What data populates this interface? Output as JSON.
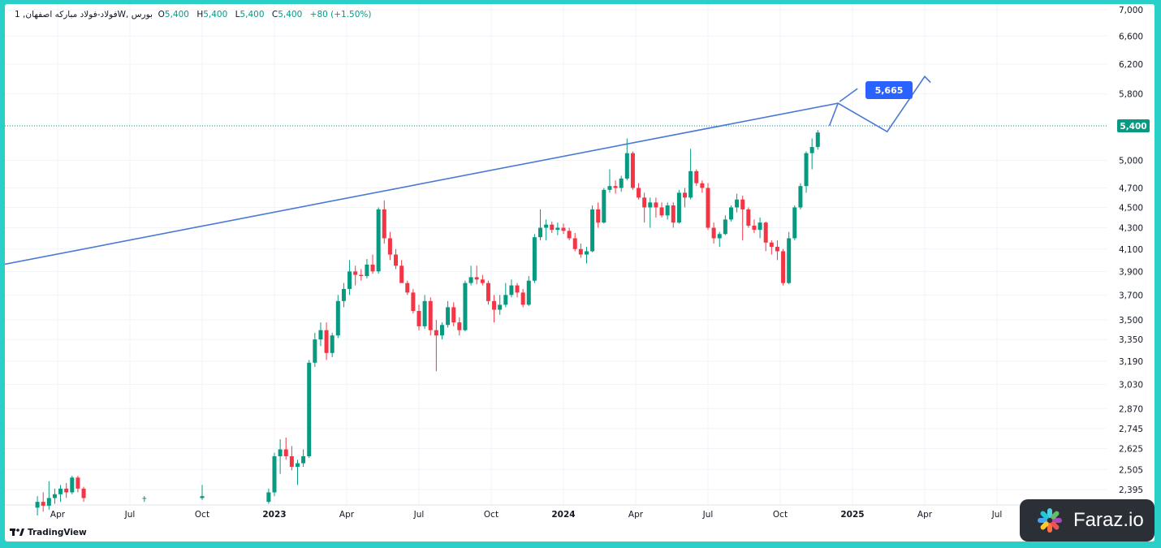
{
  "legend": {
    "symbol": "فولاد-فولاد مبارکه اصفهان, 1W, بورس",
    "open_label": "O",
    "open": "5,400",
    "high_label": "H",
    "high": "5,400",
    "low_label": "L",
    "low": "5,400",
    "close_label": "C",
    "close": "5,400",
    "change": "+80 (+1.50%)"
  },
  "brand": "TradingView",
  "watermark": "Faraz.io",
  "colors": {
    "up": "#089981",
    "down": "#f23645",
    "trend": "#4a78d6",
    "label_bg": "#2962ff",
    "price_tag": "#089981"
  },
  "chart_data": {
    "type": "candlestick",
    "title": "فولاد-فولاد مبارکه اصفهان, 1W, بورس",
    "y_scale": "log",
    "y_ticks": [
      "7,000",
      "6,600",
      "6,200",
      "5,800",
      "5,400",
      "5,000",
      "4,700",
      "4,500",
      "4,300",
      "4,100",
      "3,900",
      "3,700",
      "3,500",
      "3,350",
      "3,190",
      "3,030",
      "2,870",
      "2,745",
      "2,625",
      "2,505",
      "2,395"
    ],
    "y_tick_values": [
      7000,
      6600,
      6200,
      5800,
      5400,
      5000,
      4700,
      4500,
      4300,
      4100,
      3900,
      3700,
      3500,
      3350,
      3190,
      3030,
      2870,
      2745,
      2625,
      2505,
      2395
    ],
    "x_ticks": [
      "Apr",
      "Jul",
      "Oct",
      "2023",
      "Apr",
      "Jul",
      "Oct",
      "2024",
      "Apr",
      "Jul",
      "Oct",
      "2025",
      "Apr",
      "Jul"
    ],
    "x_tick_dates": [
      "2022-04",
      "2022-07",
      "2022-10",
      "2023-01",
      "2023-04",
      "2023-07",
      "2023-10",
      "2024-01",
      "2024-04",
      "2024-07",
      "2024-10",
      "2025-01",
      "2025-04",
      "2025-07"
    ],
    "last_price": 5400,
    "last_price_label": "5,400",
    "target_label": "5,665",
    "target_value": 5665,
    "trendline": [
      [
        2022.0,
        3930
      ],
      [
        2024.95,
        5680
      ]
    ],
    "projection": [
      [
        2024.92,
        5400
      ],
      [
        2024.95,
        5680
      ],
      [
        2025.12,
        5330
      ],
      [
        2025.25,
        6030
      ],
      [
        2025.27,
        5950
      ]
    ],
    "candles": [
      [
        2022.18,
        2300,
        2360,
        2260,
        2330
      ],
      [
        2022.2,
        2330,
        2380,
        2280,
        2310
      ],
      [
        2022.22,
        2310,
        2440,
        2290,
        2350
      ],
      [
        2022.24,
        2350,
        2400,
        2320,
        2370
      ],
      [
        2022.26,
        2370,
        2420,
        2330,
        2400
      ],
      [
        2022.28,
        2400,
        2430,
        2350,
        2380
      ],
      [
        2022.3,
        2380,
        2470,
        2370,
        2460
      ],
      [
        2022.32,
        2460,
        2470,
        2380,
        2400
      ],
      [
        2022.34,
        2400,
        2410,
        2330,
        2350
      ],
      [
        2022.55,
        2350,
        2360,
        2330,
        2350
      ],
      [
        2022.75,
        2350,
        2420,
        2340,
        2360
      ],
      [
        2022.98,
        2330,
        2400,
        2320,
        2380
      ],
      [
        2023.0,
        2380,
        2600,
        2360,
        2580
      ],
      [
        2023.02,
        2580,
        2680,
        2480,
        2620
      ],
      [
        2023.04,
        2620,
        2690,
        2560,
        2580
      ],
      [
        2023.06,
        2580,
        2640,
        2500,
        2520
      ],
      [
        2023.08,
        2520,
        2560,
        2420,
        2540
      ],
      [
        2023.1,
        2540,
        2620,
        2520,
        2580
      ],
      [
        2023.12,
        2580,
        3200,
        2570,
        3180
      ],
      [
        2023.14,
        3180,
        3400,
        3150,
        3350
      ],
      [
        2023.16,
        3350,
        3480,
        3300,
        3420
      ],
      [
        2023.18,
        3420,
        3480,
        3200,
        3250
      ],
      [
        2023.2,
        3250,
        3400,
        3220,
        3380
      ],
      [
        2023.22,
        3380,
        3700,
        3360,
        3650
      ],
      [
        2023.24,
        3650,
        3800,
        3600,
        3750
      ],
      [
        2023.26,
        3750,
        4000,
        3700,
        3900
      ],
      [
        2023.28,
        3900,
        3950,
        3780,
        3870
      ],
      [
        2023.3,
        3870,
        3920,
        3820,
        3860
      ],
      [
        2023.32,
        3860,
        4010,
        3840,
        3960
      ],
      [
        2023.34,
        3960,
        4050,
        3880,
        3900
      ],
      [
        2023.36,
        3900,
        4500,
        3880,
        4480
      ],
      [
        2023.38,
        4480,
        4570,
        4150,
        4200
      ],
      [
        2023.4,
        4200,
        4260,
        4000,
        4050
      ],
      [
        2023.42,
        4050,
        4100,
        3920,
        3950
      ],
      [
        2023.44,
        3950,
        4000,
        3820,
        3800
      ],
      [
        2023.46,
        3800,
        3820,
        3700,
        3720
      ],
      [
        2023.48,
        3720,
        3750,
        3550,
        3570
      ],
      [
        2023.5,
        3570,
        3620,
        3420,
        3450
      ],
      [
        2023.52,
        3450,
        3700,
        3430,
        3650
      ],
      [
        2023.54,
        3650,
        3680,
        3380,
        3420
      ],
      [
        2023.56,
        3420,
        3500,
        3120,
        3380
      ],
      [
        2023.58,
        3380,
        3480,
        3350,
        3460
      ],
      [
        2023.6,
        3460,
        3650,
        3440,
        3600
      ],
      [
        2023.62,
        3600,
        3640,
        3450,
        3480
      ],
      [
        2023.64,
        3480,
        3520,
        3380,
        3420
      ],
      [
        2023.66,
        3420,
        3820,
        3410,
        3800
      ],
      [
        2023.68,
        3800,
        3950,
        3780,
        3850
      ],
      [
        2023.7,
        3850,
        3950,
        3790,
        3830
      ],
      [
        2023.72,
        3830,
        3870,
        3780,
        3800
      ],
      [
        2023.74,
        3800,
        3820,
        3620,
        3650
      ],
      [
        2023.76,
        3650,
        3700,
        3480,
        3580
      ],
      [
        2023.78,
        3580,
        3700,
        3540,
        3620
      ],
      [
        2023.8,
        3620,
        3800,
        3600,
        3700
      ],
      [
        2023.82,
        3700,
        3830,
        3680,
        3780
      ],
      [
        2023.84,
        3780,
        3800,
        3680,
        3720
      ],
      [
        2023.86,
        3720,
        3750,
        3600,
        3620
      ],
      [
        2023.88,
        3620,
        3860,
        3610,
        3820
      ],
      [
        2023.9,
        3820,
        4240,
        3800,
        4210
      ],
      [
        2023.92,
        4210,
        4480,
        4180,
        4300
      ],
      [
        2023.94,
        4300,
        4380,
        4180,
        4330
      ],
      [
        2023.96,
        4330,
        4360,
        4250,
        4280
      ],
      [
        2023.98,
        4280,
        4350,
        4230,
        4300
      ],
      [
        2024.0,
        4300,
        4340,
        4240,
        4270
      ],
      [
        2024.02,
        4270,
        4300,
        4180,
        4200
      ],
      [
        2024.04,
        4200,
        4250,
        4080,
        4100
      ],
      [
        2024.06,
        4100,
        4150,
        4020,
        4050
      ],
      [
        2024.08,
        4050,
        4120,
        3970,
        4080
      ],
      [
        2024.1,
        4080,
        4520,
        4070,
        4480
      ],
      [
        2024.12,
        4480,
        4550,
        4300,
        4350
      ],
      [
        2024.14,
        4350,
        4700,
        4340,
        4680
      ],
      [
        2024.16,
        4680,
        4900,
        4650,
        4720
      ],
      [
        2024.18,
        4720,
        4780,
        4640,
        4700
      ],
      [
        2024.2,
        4700,
        4830,
        4660,
        4800
      ],
      [
        2024.22,
        4800,
        5250,
        4780,
        5080
      ],
      [
        2024.24,
        5080,
        5100,
        4680,
        4700
      ],
      [
        2024.26,
        4700,
        4750,
        4580,
        4600
      ],
      [
        2024.28,
        4600,
        4650,
        4350,
        4500
      ],
      [
        2024.3,
        4500,
        4600,
        4300,
        4550
      ],
      [
        2024.32,
        4550,
        4600,
        4400,
        4500
      ],
      [
        2024.34,
        4500,
        4550,
        4400,
        4420
      ],
      [
        2024.36,
        4420,
        4550,
        4380,
        4520
      ],
      [
        2024.38,
        4520,
        4550,
        4300,
        4350
      ],
      [
        2024.4,
        4350,
        4680,
        4340,
        4650
      ],
      [
        2024.42,
        4650,
        4700,
        4500,
        4600
      ],
      [
        2024.44,
        4600,
        5130,
        4580,
        4880
      ],
      [
        2024.46,
        4880,
        4900,
        4720,
        4750
      ],
      [
        2024.48,
        4750,
        4780,
        4650,
        4700
      ],
      [
        2024.5,
        4700,
        4750,
        4280,
        4300
      ],
      [
        2024.52,
        4300,
        4350,
        4150,
        4200
      ],
      [
        2024.54,
        4200,
        4260,
        4120,
        4240
      ],
      [
        2024.56,
        4240,
        4420,
        4230,
        4380
      ],
      [
        2024.58,
        4380,
        4520,
        4360,
        4500
      ],
      [
        2024.6,
        4500,
        4640,
        4450,
        4580
      ],
      [
        2024.62,
        4580,
        4620,
        4180,
        4480
      ],
      [
        2024.64,
        4480,
        4500,
        4300,
        4320
      ],
      [
        2024.66,
        4320,
        4380,
        4250,
        4280
      ],
      [
        2024.68,
        4280,
        4400,
        4200,
        4350
      ],
      [
        2024.7,
        4350,
        4360,
        4080,
        4160
      ],
      [
        2024.72,
        4160,
        4180,
        4050,
        4120
      ],
      [
        2024.74,
        4120,
        4180,
        4000,
        4080
      ],
      [
        2024.76,
        4080,
        4100,
        3780,
        3800
      ],
      [
        2024.78,
        3800,
        4260,
        3790,
        4200
      ],
      [
        2024.8,
        4200,
        4520,
        4180,
        4500
      ],
      [
        2024.82,
        4500,
        4750,
        4480,
        4720
      ],
      [
        2024.84,
        4720,
        5100,
        4650,
        5080
      ],
      [
        2024.86,
        5080,
        5250,
        4900,
        5150
      ],
      [
        2024.88,
        5150,
        5350,
        5120,
        5320
      ]
    ]
  }
}
